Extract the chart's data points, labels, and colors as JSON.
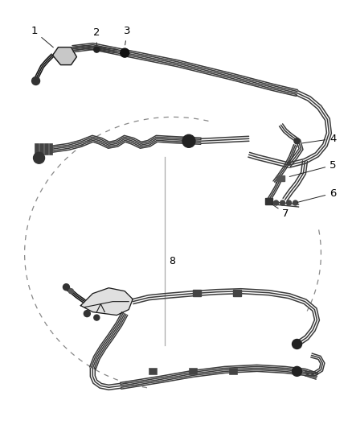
{
  "background_color": "#ffffff",
  "line_color": "#3a3a3a",
  "dark_color": "#1a1a1a",
  "dashed_color": "#888888",
  "label_color": "#000000",
  "figsize": [
    4.38,
    5.33
  ],
  "dpi": 100,
  "lw_tube": 1.1,
  "lw_connector": 1.4,
  "tube_offsets": [
    -0.006,
    -0.003,
    0,
    0.003,
    0.006
  ],
  "tube_offsets3": [
    -0.004,
    0,
    0.004
  ],
  "tube_offsets2": [
    -0.003,
    0,
    0.003
  ]
}
